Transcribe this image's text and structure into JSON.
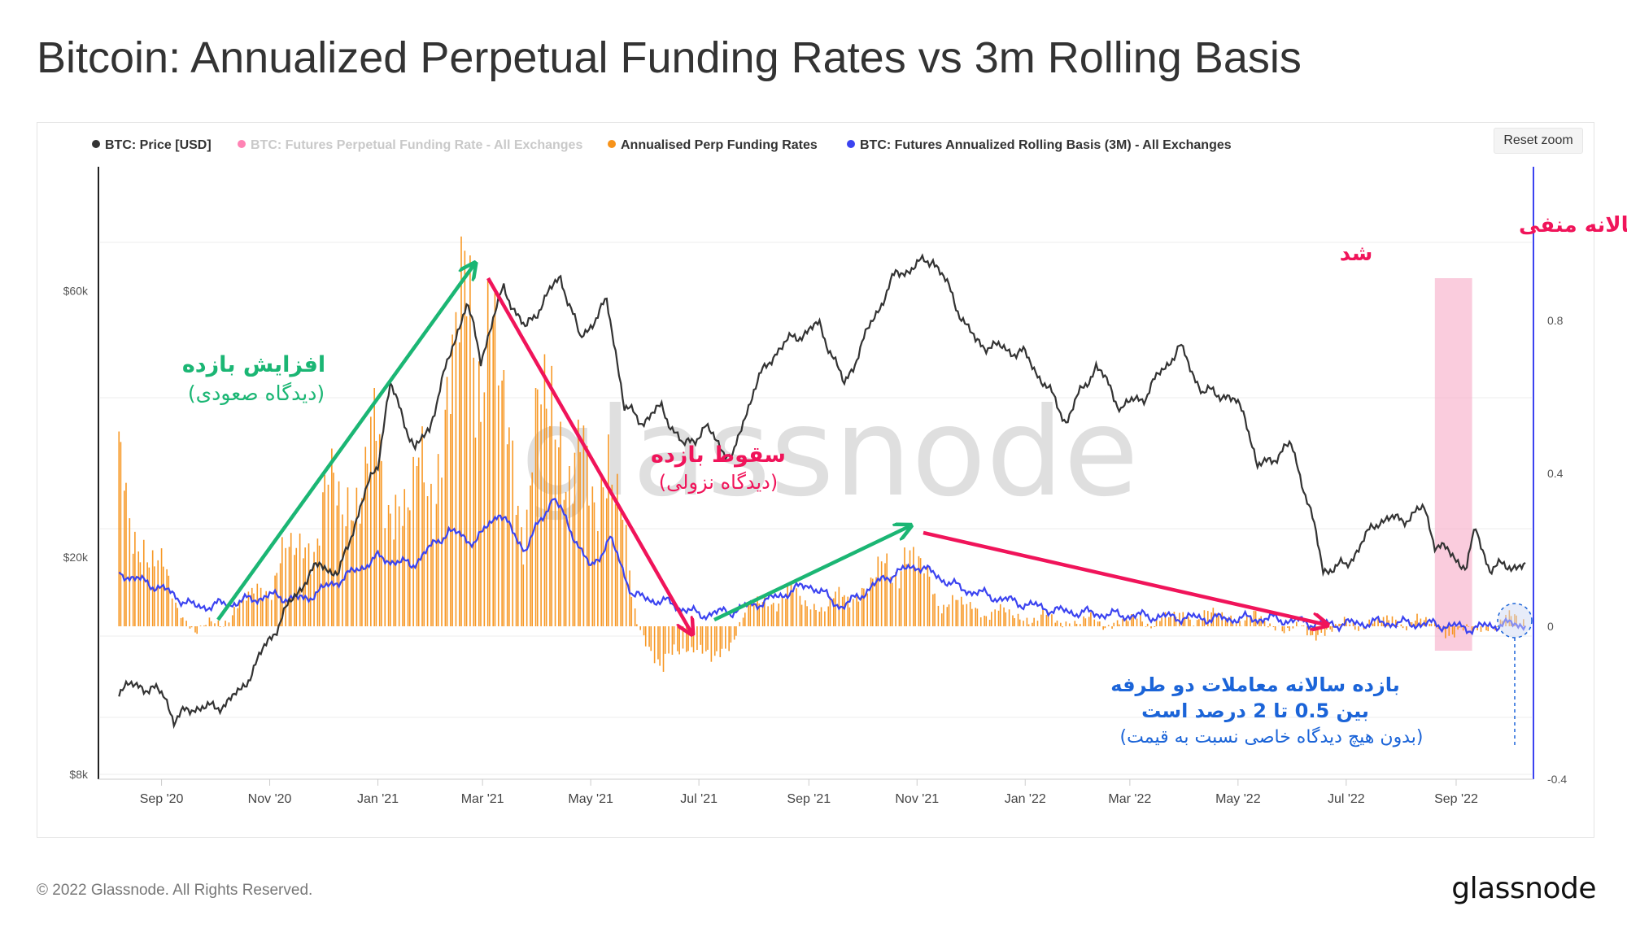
{
  "title": "Bitcoin: Annualized Perpetual Funding Rates vs 3m Rolling Basis",
  "reset_zoom_label": "Reset zoom",
  "footer": {
    "copyright": "© 2022 Glassnode. All Rights Reserved.",
    "logo": "glassnode"
  },
  "watermark": "glassnode",
  "colors": {
    "price": "#333333",
    "funding_rate": "#ff1e7a",
    "annualised": "#f7931a",
    "basis": "#3b43f0",
    "bullish": "#1bb674",
    "bearish": "#f0145a",
    "neutral_note": "#1b64d8",
    "highlight": "#f8b7cf"
  },
  "annotations": {
    "rise_title": "افزایش بازده",
    "rise_sub": "(دیدگاه صعودی)",
    "fall_title": "سقوط بازده",
    "fall_sub": "(دیدگاه نزولی)",
    "neg_line1": "به طور مختصر بازده سالانه منفی",
    "neg_line2": "شد",
    "basis_line1": "بازده سالانه معاملات دو طرفه",
    "basis_line2": "بین 0.5 تا 2 درصد است",
    "basis_sub": "(بدون هیچ دیدگاه خاصی نسبت به قیمت)"
  },
  "chart_data": {
    "type": "line",
    "title": "Bitcoin: Annualized Perpetual Funding Rates vs 3m Rolling Basis",
    "legend": [
      {
        "name": "BTC: Price [USD]",
        "color": "#333333",
        "active": true
      },
      {
        "name": "BTC: Futures Perpetual Funding Rate - All Exchanges",
        "color": "#ff1e7a",
        "active": false
      },
      {
        "name": "Annualised Perp Funding Rates",
        "color": "#f7931a",
        "active": true
      },
      {
        "name": "BTC: Futures Annualized Rolling Basis (3M) - All Exchanges",
        "color": "#3b43f0",
        "active": true
      }
    ],
    "legend_position": "top-left",
    "x_ticks": [
      "Sep '20",
      "Nov '20",
      "Jan '21",
      "Mar '21",
      "May '21",
      "Jul '21",
      "Sep '21",
      "Nov '21",
      "Jan '22",
      "Mar '22",
      "May '22",
      "Jul '22",
      "Sep '22"
    ],
    "x_range": [
      "2020-08",
      "2022-10"
    ],
    "y_left": {
      "scale": "log",
      "ticks": [
        "$8k",
        "$20k",
        "$60k"
      ],
      "range": [
        8000,
        100000
      ]
    },
    "y_right": {
      "scale": "linear",
      "ticks": [
        "-0.4",
        "0",
        "0.4",
        "0.8"
      ],
      "range": [
        -0.4,
        1.2
      ]
    },
    "price_series": {
      "name": "BTC: Price [USD]",
      "points": [
        [
          "2020-08-08",
          11600
        ],
        [
          "2020-08-20",
          11800
        ],
        [
          "2020-09-03",
          11300
        ],
        [
          "2020-09-08",
          10200
        ],
        [
          "2020-09-20",
          10800
        ],
        [
          "2020-10-01",
          10700
        ],
        [
          "2020-10-15",
          11400
        ],
        [
          "2020-10-25",
          13000
        ],
        [
          "2020-11-05",
          15000
        ],
        [
          "2020-11-20",
          18000
        ],
        [
          "2020-11-30",
          19500
        ],
        [
          "2020-12-10",
          18500
        ],
        [
          "2020-12-20",
          23500
        ],
        [
          "2021-01-01",
          29500
        ],
        [
          "2021-01-08",
          40500
        ],
        [
          "2021-01-22",
          31000
        ],
        [
          "2021-01-30",
          34000
        ],
        [
          "2021-02-10",
          45000
        ],
        [
          "2021-02-20",
          57000
        ],
        [
          "2021-02-28",
          45000
        ],
        [
          "2021-03-13",
          60500
        ],
        [
          "2021-03-25",
          51000
        ],
        [
          "2021-04-14",
          63500
        ],
        [
          "2021-04-25",
          49000
        ],
        [
          "2021-05-10",
          57000
        ],
        [
          "2021-05-20",
          37000
        ],
        [
          "2021-05-30",
          35000
        ],
        [
          "2021-06-10",
          37000
        ],
        [
          "2021-06-22",
          31500
        ],
        [
          "2021-07-05",
          34000
        ],
        [
          "2021-07-20",
          29800
        ],
        [
          "2021-08-01",
          40000
        ],
        [
          "2021-08-14",
          47000
        ],
        [
          "2021-08-24",
          49500
        ],
        [
          "2021-09-07",
          52000
        ],
        [
          "2021-09-21",
          40500
        ],
        [
          "2021-10-01",
          48000
        ],
        [
          "2021-10-20",
          64000
        ],
        [
          "2021-11-10",
          68500
        ],
        [
          "2021-11-26",
          54000
        ],
        [
          "2021-12-04",
          48500
        ],
        [
          "2021-12-31",
          46300
        ],
        [
          "2022-01-10",
          41800
        ],
        [
          "2022-01-24",
          35000
        ],
        [
          "2022-02-10",
          44000
        ],
        [
          "2022-02-24",
          37000
        ],
        [
          "2022-03-10",
          39000
        ],
        [
          "2022-03-29",
          47500
        ],
        [
          "2022-04-11",
          39500
        ],
        [
          "2022-04-25",
          39000
        ],
        [
          "2022-05-05",
          36000
        ],
        [
          "2022-05-12",
          28800
        ],
        [
          "2022-05-31",
          31700
        ],
        [
          "2022-06-13",
          22500
        ],
        [
          "2022-06-18",
          19000
        ],
        [
          "2022-07-01",
          19300
        ],
        [
          "2022-07-20",
          23400
        ],
        [
          "2022-08-01",
          23300
        ],
        [
          "2022-08-14",
          24400
        ],
        [
          "2022-08-20",
          21200
        ],
        [
          "2022-09-07",
          19200
        ],
        [
          "2022-09-12",
          22400
        ],
        [
          "2022-09-20",
          19000
        ],
        [
          "2022-10-01",
          19400
        ],
        [
          "2022-10-10",
          19100
        ]
      ]
    },
    "basis_series": {
      "name": "BTC: Futures Annualized Rolling Basis (3M) - All Exchanges",
      "points": [
        [
          "2020-08-08",
          0.14
        ],
        [
          "2020-09-01",
          0.1
        ],
        [
          "2020-09-20",
          0.05
        ],
        [
          "2020-10-10",
          0.06
        ],
        [
          "2020-11-01",
          0.08
        ],
        [
          "2020-11-20",
          0.07
        ],
        [
          "2020-12-10",
          0.12
        ],
        [
          "2021-01-01",
          0.18
        ],
        [
          "2021-01-20",
          0.16
        ],
        [
          "2021-02-10",
          0.25
        ],
        [
          "2021-02-25",
          0.22
        ],
        [
          "2021-03-10",
          0.3
        ],
        [
          "2021-03-25",
          0.2
        ],
        [
          "2021-04-10",
          0.34
        ],
        [
          "2021-04-20",
          0.25
        ],
        [
          "2021-05-01",
          0.15
        ],
        [
          "2021-05-12",
          0.23
        ],
        [
          "2021-05-25",
          0.08
        ],
        [
          "2021-06-15",
          0.06
        ],
        [
          "2021-07-01",
          0.03
        ],
        [
          "2021-07-20",
          0.04
        ],
        [
          "2021-08-10",
          0.07
        ],
        [
          "2021-09-01",
          0.11
        ],
        [
          "2021-09-20",
          0.05
        ],
        [
          "2021-10-15",
          0.13
        ],
        [
          "2021-11-01",
          0.16
        ],
        [
          "2021-11-25",
          0.1
        ],
        [
          "2021-12-20",
          0.07
        ],
        [
          "2022-01-20",
          0.04
        ],
        [
          "2022-02-20",
          0.03
        ],
        [
          "2022-03-20",
          0.025
        ],
        [
          "2022-04-20",
          0.02
        ],
        [
          "2022-05-20",
          0.02
        ],
        [
          "2022-06-20",
          0.005
        ],
        [
          "2022-07-20",
          0.01
        ],
        [
          "2022-08-20",
          0.005
        ],
        [
          "2022-09-10",
          -0.005
        ],
        [
          "2022-09-25",
          0.005
        ],
        [
          "2022-10-10",
          0.005
        ]
      ]
    },
    "funding_series": {
      "name": "Annualised Perp Funding Rates",
      "type": "bar",
      "points": [
        [
          "2020-08-08",
          0.35
        ],
        [
          "2020-09-01",
          0.14
        ],
        [
          "2020-09-20",
          -0.02
        ],
        [
          "2020-10-10",
          0.03
        ],
        [
          "2020-11-01",
          0.12
        ],
        [
          "2020-11-20",
          0.22
        ],
        [
          "2020-12-10",
          0.34
        ],
        [
          "2021-01-01",
          0.42
        ],
        [
          "2021-01-20",
          0.3
        ],
        [
          "2021-02-10",
          0.55
        ],
        [
          "2021-02-25",
          0.95
        ],
        [
          "2021-03-10",
          0.6
        ],
        [
          "2021-03-25",
          0.32
        ],
        [
          "2021-04-10",
          0.62
        ],
        [
          "2021-04-20",
          0.45
        ],
        [
          "2021-05-01",
          0.32
        ],
        [
          "2021-05-12",
          0.5
        ],
        [
          "2021-05-25",
          0.05
        ],
        [
          "2021-06-10",
          -0.12
        ],
        [
          "2021-06-25",
          -0.04
        ],
        [
          "2021-07-10",
          -0.1
        ],
        [
          "2021-08-01",
          0.06
        ],
        [
          "2021-08-20",
          0.08
        ],
        [
          "2021-09-10",
          0.05
        ],
        [
          "2021-10-10",
          0.12
        ],
        [
          "2021-10-25",
          0.2
        ],
        [
          "2021-11-15",
          0.07
        ],
        [
          "2021-12-10",
          0.04
        ],
        [
          "2022-01-10",
          0.02
        ],
        [
          "2022-02-10",
          0.01
        ],
        [
          "2022-03-10",
          0.015
        ],
        [
          "2022-04-10",
          0.03
        ],
        [
          "2022-05-10",
          0.02
        ],
        [
          "2022-06-10",
          -0.02
        ],
        [
          "2022-07-10",
          0.01
        ],
        [
          "2022-08-10",
          0.015
        ],
        [
          "2022-09-05",
          -0.02
        ],
        [
          "2022-09-25",
          0.01
        ],
        [
          "2022-10-10",
          0.025
        ]
      ]
    },
    "highlight_region": [
      "2022-08-20",
      "2022-09-10"
    ]
  }
}
